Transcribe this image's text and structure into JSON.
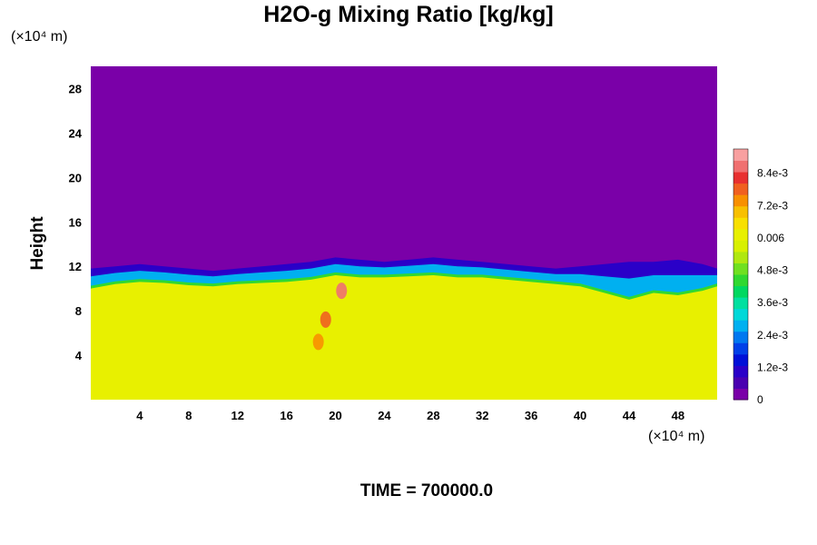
{
  "chart_data": {
    "type": "heatmap",
    "title": "H2O-g Mixing Ratio [kg/kg]",
    "ylabel": "Height",
    "xlabel": "",
    "x_unit": "(×10⁴ m)",
    "y_unit": "(×10⁴ m)",
    "footer": "TIME = 700000.0",
    "xlim": [
      0,
      51.2
    ],
    "ylim": [
      0,
      30
    ],
    "x_ticks": [
      4,
      8,
      12,
      16,
      20,
      24,
      28,
      32,
      36,
      40,
      44,
      48
    ],
    "y_ticks": [
      4,
      8,
      12,
      16,
      20,
      24,
      28
    ],
    "colorbar": {
      "range": [
        0,
        0.0093
      ],
      "ticks": [
        {
          "label": "0",
          "value": 0
        },
        {
          "label": "1.2e-3",
          "value": 0.0012
        },
        {
          "label": "2.4e-3",
          "value": 0.0024
        },
        {
          "label": "3.6e-3",
          "value": 0.0036
        },
        {
          "label": "4.8e-3",
          "value": 0.0048
        },
        {
          "label": "0.006",
          "value": 0.006
        },
        {
          "label": "7.2e-3",
          "value": 0.0072
        },
        {
          "label": "8.4e-3",
          "value": 0.0084
        }
      ],
      "colors": [
        "#7a00a8",
        "#4a00b0",
        "#2a00c8",
        "#0010d8",
        "#0040e8",
        "#0078f0",
        "#00b0f0",
        "#00d8d8",
        "#00e0a0",
        "#00d860",
        "#30d830",
        "#70e020",
        "#b0e810",
        "#d8f000",
        "#e8f000",
        "#f8e000",
        "#f8c000",
        "#f89000",
        "#f06020",
        "#e83030",
        "#f07070",
        "#f8a0a0"
      ]
    },
    "background_value": 0,
    "layer": {
      "description_values": "moist lower layer ~0.0062 kg/kg, dry upper layer 0",
      "moist_value": 0.0062,
      "boundary_x": [
        0,
        2,
        4,
        6,
        8,
        10,
        12,
        14,
        16,
        18,
        20,
        22,
        24,
        26,
        28,
        30,
        32,
        34,
        36,
        38,
        40,
        42,
        44,
        46,
        48,
        50,
        51.2
      ],
      "boundary_height": [
        10.0,
        10.4,
        10.6,
        10.5,
        10.3,
        10.2,
        10.4,
        10.5,
        10.6,
        10.8,
        11.2,
        11.0,
        11.0,
        11.1,
        11.2,
        11.0,
        11.0,
        10.8,
        10.6,
        10.4,
        10.2,
        9.6,
        9.0,
        9.6,
        9.4,
        9.8,
        10.2
      ],
      "transition_top": [
        11.8,
        12.0,
        12.2,
        12.0,
        11.8,
        11.6,
        11.8,
        12.0,
        12.2,
        12.4,
        12.8,
        12.6,
        12.4,
        12.6,
        12.8,
        12.6,
        12.4,
        12.2,
        12.0,
        11.8,
        12.0,
        12.2,
        12.4,
        12.4,
        12.6,
        12.2,
        11.8
      ]
    },
    "hotspots": [
      {
        "x": 20.5,
        "y": 9.8,
        "value": 0.0086
      },
      {
        "x": 19.2,
        "y": 7.2,
        "value": 0.0078
      },
      {
        "x": 18.6,
        "y": 5.2,
        "value": 0.0072
      }
    ]
  }
}
